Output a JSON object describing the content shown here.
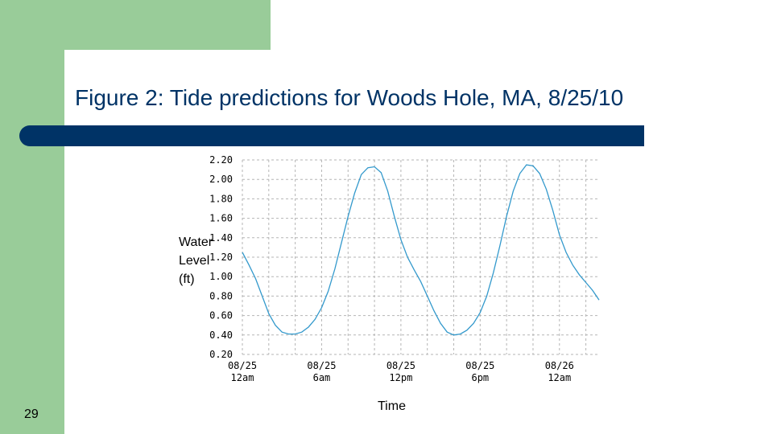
{
  "slide": {
    "title": "Figure 2: Tide predictions for Woods Hole, MA, 8/25/10",
    "page_number": "29",
    "accent_color": "#99cc99",
    "bar_color": "#003366"
  },
  "chart_data": {
    "type": "line",
    "title": "",
    "xlabel": "Time",
    "ylabel_lines": [
      "Water",
      "Level",
      "(ft)"
    ],
    "yticks": [
      "2.20",
      "2.00",
      "1.80",
      "1.60",
      "1.40",
      "1.20",
      "1.00",
      "0.80",
      "0.60",
      "0.40",
      "0.20"
    ],
    "ylim": [
      0.2,
      2.2
    ],
    "xlim": [
      0,
      27
    ],
    "xticks": [
      {
        "x": 0,
        "date": "08/25",
        "time": "12am"
      },
      {
        "x": 6,
        "date": "08/25",
        "time": "6am"
      },
      {
        "x": 12,
        "date": "08/25",
        "time": "12pm"
      },
      {
        "x": 18,
        "date": "08/25",
        "time": "6pm"
      },
      {
        "x": 24,
        "date": "08/26",
        "time": "12am"
      }
    ],
    "grid": true,
    "line_color": "#3399cc",
    "series": [
      {
        "x": [
          0,
          0.5,
          1,
          1.5,
          2,
          2.5,
          3,
          3.5,
          4,
          4.5,
          5,
          5.5,
          6,
          6.5,
          7,
          7.5,
          8,
          8.5,
          9,
          9.5,
          10,
          10.5,
          11,
          11.5,
          12,
          12.5,
          13,
          13.5,
          14,
          14.5,
          15,
          15.5,
          16,
          16.5,
          17,
          17.5,
          18,
          18.5,
          19,
          19.5,
          20,
          20.5,
          21,
          21.5,
          22,
          22.5,
          23,
          23.5,
          24,
          24.5,
          25,
          25.5,
          26,
          26.5,
          27
        ],
        "values": [
          1.25,
          1.12,
          0.98,
          0.8,
          0.62,
          0.5,
          0.43,
          0.41,
          0.41,
          0.43,
          0.48,
          0.56,
          0.68,
          0.85,
          1.08,
          1.35,
          1.62,
          1.86,
          2.05,
          2.12,
          2.13,
          2.07,
          1.88,
          1.62,
          1.38,
          1.2,
          1.07,
          0.95,
          0.8,
          0.65,
          0.52,
          0.43,
          0.4,
          0.41,
          0.45,
          0.52,
          0.63,
          0.8,
          1.04,
          1.32,
          1.62,
          1.88,
          2.06,
          2.15,
          2.14,
          2.06,
          1.9,
          1.68,
          1.43,
          1.25,
          1.12,
          1.02,
          0.94,
          0.86,
          0.76
        ]
      }
    ]
  }
}
